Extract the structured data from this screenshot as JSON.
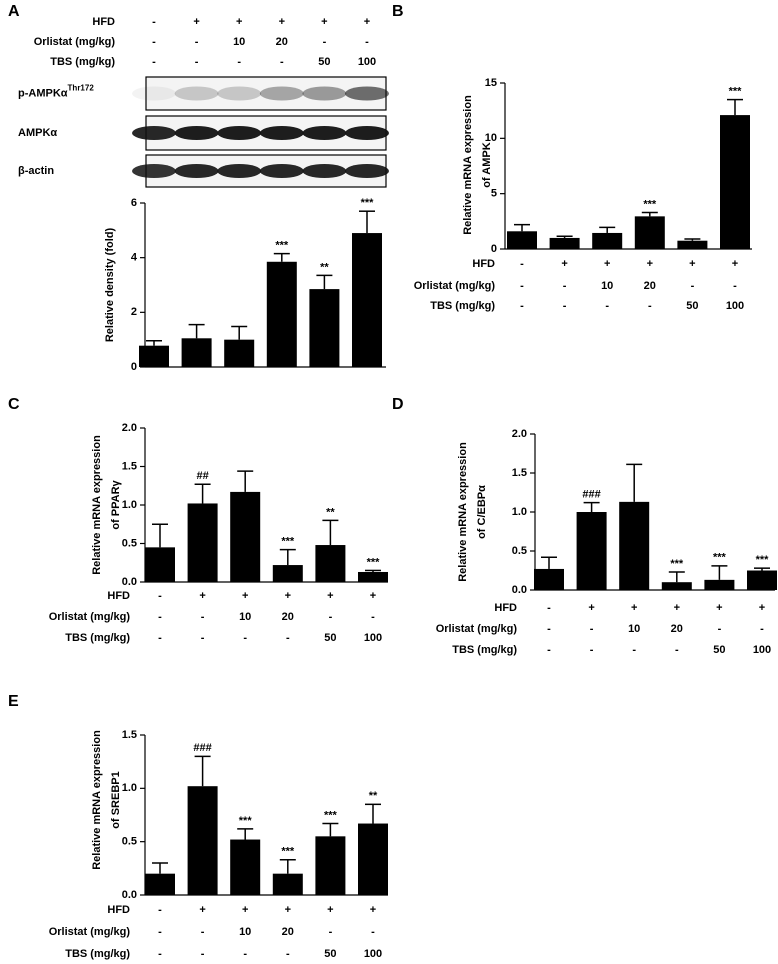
{
  "chart_data": [
    {
      "panel": "A",
      "type": "bar",
      "color": "#000000",
      "treatments": [
        {
          "name": "HFD",
          "marks": [
            "-",
            "+",
            "+",
            "+",
            "+",
            "+"
          ]
        },
        {
          "name": "Orlistat (mg/kg)",
          "marks": [
            "-",
            "-",
            "10",
            "20",
            "-",
            "-"
          ]
        },
        {
          "name": "TBS (mg/kg)",
          "marks": [
            "-",
            "-",
            "-",
            "-",
            "50",
            "100"
          ]
        }
      ],
      "blots": [
        {
          "label": "p-AMPKα",
          "superscript": "Thr172"
        },
        {
          "label": "AMPKα"
        },
        {
          "label": "β-actin"
        }
      ],
      "ylabel": [
        "Relative density (fold)"
      ],
      "values": [
        0.78,
        1.05,
        1.0,
        3.85,
        2.85,
        4.9
      ],
      "errors": [
        0.18,
        0.5,
        0.48,
        0.3,
        0.5,
        0.8
      ],
      "annotations": [
        null,
        null,
        null,
        "***",
        "**",
        "***"
      ],
      "ylim": [
        0,
        6
      ],
      "yticks": [
        0,
        2,
        4,
        6
      ]
    },
    {
      "panel": "B",
      "type": "bar",
      "color": "#000000",
      "treatments": [
        {
          "name": "HFD",
          "marks": [
            "-",
            "+",
            "+",
            "+",
            "+",
            "+"
          ]
        },
        {
          "name": "Orlistat (mg/kg)",
          "marks": [
            "-",
            "-",
            "10",
            "20",
            "-",
            "-"
          ]
        },
        {
          "name": "TBS (mg/kg)",
          "marks": [
            "-",
            "-",
            "-",
            "-",
            "50",
            "100"
          ]
        }
      ],
      "ylabel": [
        "Relative mRNA expression",
        "of AMPK"
      ],
      "values": [
        1.6,
        1.0,
        1.45,
        2.95,
        0.75,
        12.1
      ],
      "errors": [
        0.6,
        0.15,
        0.5,
        0.35,
        0.15,
        1.4
      ],
      "annotations": [
        null,
        null,
        null,
        "***",
        null,
        "***"
      ],
      "ylim": [
        0,
        15
      ],
      "yticks": [
        0,
        5,
        10,
        15
      ]
    },
    {
      "panel": "C",
      "type": "bar",
      "color": "#000000",
      "treatments": [
        {
          "name": "HFD",
          "marks": [
            "-",
            "+",
            "+",
            "+",
            "+",
            "+"
          ]
        },
        {
          "name": "Orlistat (mg/kg)",
          "marks": [
            "-",
            "-",
            "10",
            "20",
            "-",
            "-"
          ]
        },
        {
          "name": "TBS (mg/kg)",
          "marks": [
            "-",
            "-",
            "-",
            "-",
            "50",
            "100"
          ]
        }
      ],
      "ylabel": [
        "Relative mRNA expression",
        "of PPARγ"
      ],
      "values": [
        0.45,
        1.02,
        1.17,
        0.22,
        0.48,
        0.13
      ],
      "errors": [
        0.3,
        0.25,
        0.27,
        0.2,
        0.32,
        0.02
      ],
      "annotations": [
        null,
        "##",
        null,
        "***",
        "**",
        "***"
      ],
      "ylim": [
        0,
        2
      ],
      "yticks": [
        {
          "value": 0,
          "label": "0.0"
        },
        {
          "value": 0.5,
          "label": "0.5"
        },
        {
          "value": 1,
          "label": "1.0"
        },
        {
          "value": 1.5,
          "label": "1.5"
        },
        {
          "value": 2,
          "label": "2.0"
        }
      ]
    },
    {
      "panel": "D",
      "type": "bar",
      "color": "#000000",
      "treatments": [
        {
          "name": "HFD",
          "marks": [
            "-",
            "+",
            "+",
            "+",
            "+",
            "+"
          ]
        },
        {
          "name": "Orlistat (mg/kg)",
          "marks": [
            "-",
            "-",
            "10",
            "20",
            "-",
            "-"
          ]
        },
        {
          "name": "TBS (mg/kg)",
          "marks": [
            "-",
            "-",
            "-",
            "-",
            "50",
            "100"
          ]
        }
      ],
      "ylabel": [
        "Relative mRNA expression",
        "of C/EBPα"
      ],
      "values": [
        0.27,
        1.0,
        1.13,
        0.1,
        0.13,
        0.25
      ],
      "errors": [
        0.15,
        0.12,
        0.48,
        0.13,
        0.18,
        0.03
      ],
      "annotations": [
        null,
        "###",
        null,
        "***",
        "***",
        "***"
      ],
      "ylim": [
        0,
        2
      ],
      "yticks": [
        {
          "value": 0,
          "label": "0.0"
        },
        {
          "value": 0.5,
          "label": "0.5"
        },
        {
          "value": 1,
          "label": "1.0"
        },
        {
          "value": 1.5,
          "label": "1.5"
        },
        {
          "value": 2,
          "label": "2.0"
        }
      ]
    },
    {
      "panel": "E",
      "type": "bar",
      "color": "#000000",
      "treatments": [
        {
          "name": "HFD",
          "marks": [
            "-",
            "+",
            "+",
            "+",
            "+",
            "+"
          ]
        },
        {
          "name": "Orlistat (mg/kg)",
          "marks": [
            "-",
            "-",
            "10",
            "20",
            "-",
            "-"
          ]
        },
        {
          "name": "TBS (mg/kg)",
          "marks": [
            "-",
            "-",
            "-",
            "-",
            "50",
            "100"
          ]
        }
      ],
      "ylabel": [
        "Relative mRNA expression",
        "of SREBP1"
      ],
      "values": [
        0.2,
        1.02,
        0.52,
        0.2,
        0.55,
        0.67
      ],
      "errors": [
        0.1,
        0.28,
        0.1,
        0.13,
        0.12,
        0.18
      ],
      "annotations": [
        null,
        "###",
        "***",
        "***",
        "***",
        "**"
      ],
      "ylim": [
        0,
        1.5
      ],
      "yticks": [
        {
          "value": 0,
          "label": "0.0"
        },
        {
          "value": 0.5,
          "label": "0.5"
        },
        {
          "value": 1,
          "label": "1.0"
        },
        {
          "value": 1.5,
          "label": "1.5"
        }
      ]
    }
  ]
}
